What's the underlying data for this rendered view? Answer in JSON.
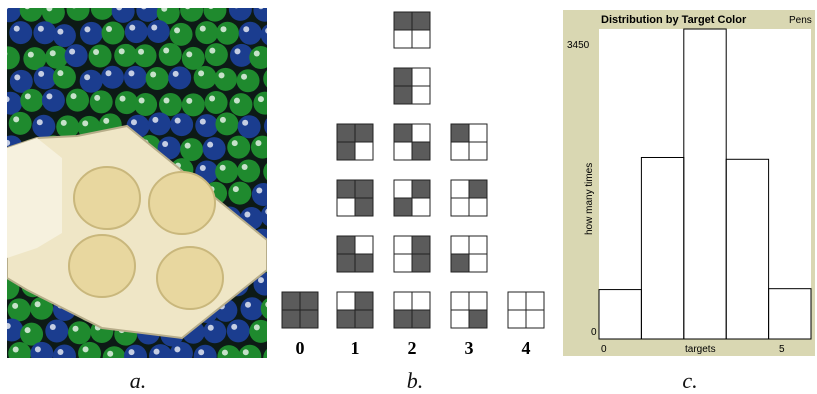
{
  "captions": {
    "a": "a.",
    "b": "b.",
    "c": "c."
  },
  "photo": {
    "colors": {
      "green": "#1f8a2e",
      "blue": "#1b3d8f",
      "tray": "#efe6c6",
      "well": "#e8d79f"
    },
    "icons": [
      "marble-pit",
      "four-well-sampler-tray"
    ]
  },
  "grid_diagram": {
    "column_labels": [
      "0",
      "1",
      "2",
      "3",
      "4"
    ],
    "dark_color": "#5b5b5b",
    "columns": [
      {
        "label": "0",
        "grids": [
          [
            1,
            1,
            1,
            1
          ]
        ]
      },
      {
        "label": "1",
        "grids": [
          [
            1,
            1,
            1,
            0
          ],
          [
            1,
            1,
            0,
            1
          ],
          [
            1,
            0,
            1,
            1
          ],
          [
            0,
            1,
            1,
            1
          ]
        ]
      },
      {
        "label": "2",
        "grids": [
          [
            1,
            1,
            0,
            0
          ],
          [
            1,
            0,
            1,
            0
          ],
          [
            1,
            0,
            0,
            1
          ],
          [
            0,
            1,
            1,
            0
          ],
          [
            0,
            1,
            0,
            1
          ],
          [
            0,
            0,
            1,
            1
          ]
        ]
      },
      {
        "label": "3",
        "grids": [
          [
            1,
            0,
            0,
            0
          ],
          [
            0,
            1,
            0,
            0
          ],
          [
            0,
            0,
            1,
            0
          ],
          [
            0,
            0,
            0,
            1
          ]
        ]
      },
      {
        "label": "4",
        "grids": [
          [
            0,
            0,
            0,
            0
          ]
        ]
      }
    ]
  },
  "histogram": {
    "title": "Distribution by Target Color",
    "pens_label": "Pens",
    "y_max_label": "3450",
    "y_min_label": "0",
    "x_min_label": "0",
    "x_max_label": "5",
    "xlabel": "targets",
    "ylabel": "how many times",
    "colors": {
      "frame": "#d9d7b2",
      "plot": "#ffffff",
      "bar": "#000000"
    }
  },
  "chart_data": {
    "type": "bar",
    "title": "Distribution by Target Color",
    "xlabel": "targets",
    "ylabel": "how many times",
    "categories": [
      "0",
      "1",
      "2",
      "3",
      "4"
    ],
    "values": [
      550,
      2020,
      3450,
      2000,
      560
    ],
    "xlim": [
      0,
      5
    ],
    "ylim": [
      0,
      3450
    ],
    "grid": false
  }
}
